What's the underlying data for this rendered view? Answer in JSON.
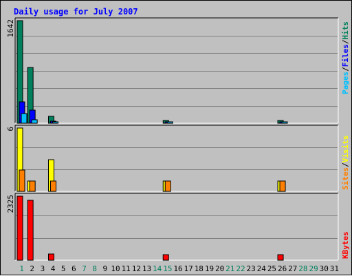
{
  "chart_data": {
    "type": "bar",
    "title": "Daily usage for July 2007",
    "colors": {
      "background": "#c0c0c0",
      "plot_area": "#c0c0c0",
      "title": "#0000ff",
      "hits": "#00805c",
      "files": "#0000ff",
      "pages": "#00c0ff",
      "visits": "#ffff00",
      "sites": "#ff8000",
      "kbytes": "#ff0000",
      "weekend_label": "#00805c",
      "weekday_label": "#000000",
      "gridline": "#808080"
    },
    "days": [
      "1",
      "2",
      "3",
      "4",
      "5",
      "6",
      "7",
      "8",
      "9",
      "10",
      "11",
      "12",
      "13",
      "14",
      "15",
      "16",
      "17",
      "18",
      "19",
      "20",
      "21",
      "22",
      "23",
      "24",
      "25",
      "26",
      "27",
      "28",
      "29",
      "30",
      "31"
    ],
    "weekend_days": [
      "1",
      "7",
      "8",
      "14",
      "15",
      "21",
      "22",
      "28",
      "29"
    ],
    "panels": [
      {
        "id": "hits-files-pages",
        "max_label": "1642",
        "ylim": [
          0,
          1642
        ],
        "legend": [
          {
            "label": "Hits",
            "color": "#00805c"
          },
          {
            "label": "/",
            "color": "#000000"
          },
          {
            "label": "Files",
            "color": "#0000ff"
          },
          {
            "label": "/",
            "color": "#000000"
          },
          {
            "label": "Pages",
            "color": "#00c0ff"
          }
        ],
        "series": [
          {
            "name": "Hits",
            "color": "#00805c",
            "values": [
              1642,
              890,
              0,
              110,
              0,
              0,
              0,
              0,
              0,
              0,
              0,
              0,
              0,
              0,
              40,
              0,
              0,
              0,
              0,
              0,
              0,
              0,
              0,
              0,
              0,
              40,
              0,
              0,
              0,
              0,
              0
            ]
          },
          {
            "name": "Files",
            "color": "#0000ff",
            "values": [
              340,
              210,
              0,
              35,
              0,
              0,
              0,
              0,
              0,
              0,
              0,
              0,
              0,
              0,
              25,
              0,
              0,
              0,
              0,
              0,
              0,
              0,
              0,
              0,
              0,
              25,
              0,
              0,
              0,
              0,
              0
            ]
          },
          {
            "name": "Pages",
            "color": "#00c0ff",
            "values": [
              150,
              60,
              0,
              10,
              0,
              0,
              0,
              0,
              0,
              0,
              0,
              0,
              0,
              0,
              5,
              0,
              0,
              0,
              0,
              0,
              0,
              0,
              0,
              0,
              0,
              5,
              0,
              0,
              0,
              0,
              0
            ]
          }
        ]
      },
      {
        "id": "visits-sites",
        "max_label": "6",
        "ylim": [
          0,
          6
        ],
        "legend": [
          {
            "label": "Visits",
            "color": "#ffff00"
          },
          {
            "label": "/",
            "color": "#000000"
          },
          {
            "label": "Sites",
            "color": "#ff8000"
          }
        ],
        "series": [
          {
            "name": "Visits",
            "color": "#ffff00",
            "values": [
              6,
              1,
              0,
              3,
              0,
              0,
              0,
              0,
              0,
              0,
              0,
              0,
              0,
              0,
              1,
              0,
              0,
              0,
              0,
              0,
              0,
              0,
              0,
              0,
              0,
              1,
              0,
              0,
              0,
              0,
              0
            ]
          },
          {
            "name": "Sites",
            "color": "#ff8000",
            "values": [
              2,
              1,
              0,
              1,
              0,
              0,
              0,
              0,
              0,
              0,
              0,
              0,
              0,
              0,
              1,
              0,
              0,
              0,
              0,
              0,
              0,
              0,
              0,
              0,
              0,
              1,
              0,
              0,
              0,
              0,
              0
            ]
          }
        ]
      },
      {
        "id": "kbytes",
        "max_label": "2325",
        "ylim": [
          0,
          2325
        ],
        "legend": [
          {
            "label": "KBytes",
            "color": "#ff0000"
          }
        ],
        "series": [
          {
            "name": "KBytes",
            "color": "#ff0000",
            "values": [
              2325,
              2170,
              0,
              220,
              0,
              0,
              0,
              0,
              0,
              0,
              0,
              0,
              0,
              0,
              190,
              0,
              0,
              0,
              0,
              0,
              0,
              0,
              0,
              0,
              0,
              190,
              0,
              0,
              0,
              0,
              0
            ]
          }
        ]
      }
    ]
  }
}
